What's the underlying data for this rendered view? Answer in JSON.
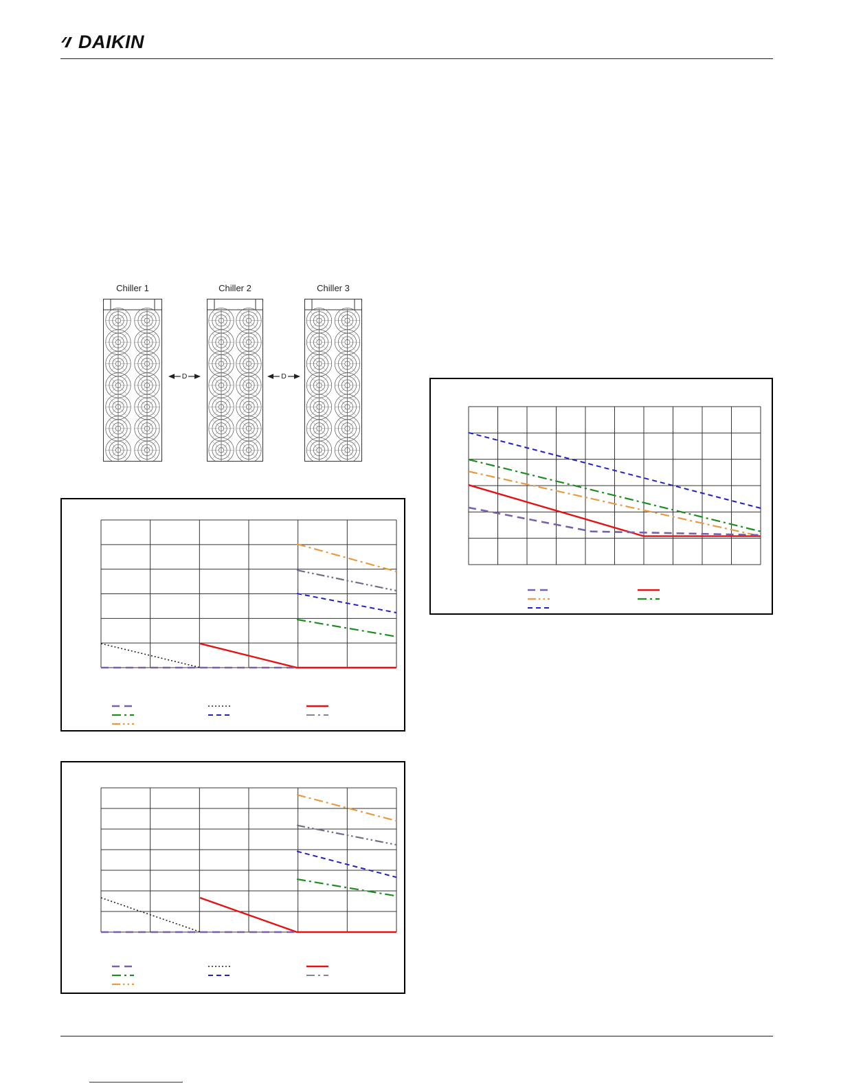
{
  "page": {
    "brand": "DAIKIN"
  },
  "diagram": {
    "spacing_label": "D",
    "units": [
      {
        "label": "Chiller 1",
        "fan_cols": 2,
        "fan_rows": 7
      },
      {
        "label": "Chiller 2",
        "fan_cols": 2,
        "fan_rows": 7
      },
      {
        "label": "Chiller 3",
        "fan_cols": 2,
        "fan_rows": 7
      }
    ]
  },
  "line_styles": {
    "purple-longdash": {
      "color": "#7a5fae",
      "dash": "11 7",
      "width": 2.6
    },
    "orange-dashdot": {
      "color": "#e99a40",
      "dash": "13 5 3 5",
      "width": 2.2
    },
    "orange-dashdotdot": {
      "color": "#e99a40",
      "dash": "12 4 2.5 4 2.5 4",
      "width": 2.2
    },
    "blue-dashed": {
      "color": "#1f1fd0",
      "dash": "7 5",
      "width": 2.0
    },
    "green-dashdot": {
      "color": "#1e8c1e",
      "dash": "13 5 3 5",
      "width": 2.2
    },
    "red-solid": {
      "color": "#e81010",
      "dash": "",
      "width": 2.4
    },
    "black-dotted": {
      "color": "#222222",
      "dash": "2 3",
      "width": 1.6
    },
    "gray-dashdotdot": {
      "color": "#6e6e88",
      "dash": "12 4 2.5 4 2.5 4",
      "width": 2.2
    },
    "gray-dashdot": {
      "color": "#8a7f9a",
      "dash": "12 5 3 5",
      "width": 2.0
    }
  },
  "chart_data": [
    {
      "type": "line",
      "title": "",
      "grid": {
        "cols": 10,
        "rows": 6
      },
      "series": [
        {
          "name": "blue-dashed",
          "style": "blue-dashed",
          "points": [
            [
              0,
              0.165
            ],
            [
              1,
              0.643
            ]
          ]
        },
        {
          "name": "green-dash-dot",
          "style": "green-dashdot",
          "points": [
            [
              0,
              0.335
            ],
            [
              1,
              0.79
            ]
          ]
        },
        {
          "name": "orange-dash-dot",
          "style": "orange-dashdot",
          "points": [
            [
              0,
              0.41
            ],
            [
              1,
              0.82
            ]
          ]
        },
        {
          "name": "red-solid",
          "style": "red-solid",
          "points": [
            [
              0,
              0.496
            ],
            [
              0.6,
              0.82
            ],
            [
              1,
              0.82
            ]
          ]
        },
        {
          "name": "purple-long-dash",
          "style": "purple-longdash",
          "points": [
            [
              0,
              0.639
            ],
            [
              0.42,
              0.79
            ],
            [
              1,
              0.813
            ]
          ]
        }
      ],
      "legend": {
        "columns": [
          [
            "purple-longdash",
            "orange-dashdotdot",
            "blue-dashed"
          ],
          [
            "red-solid",
            "green-dashdot"
          ]
        ]
      }
    },
    {
      "type": "line",
      "title": "",
      "grid": {
        "cols": 6,
        "rows": 6
      },
      "series": [
        {
          "name": "orange-dash-dot",
          "style": "orange-dashdot",
          "points": [
            [
              0.663,
              0.163
            ],
            [
              1,
              0.349
            ]
          ]
        },
        {
          "name": "gray-dash-dot-dot",
          "style": "gray-dashdotdot",
          "points": [
            [
              0.663,
              0.34
            ],
            [
              1,
              0.479
            ]
          ]
        },
        {
          "name": "blue-dashed",
          "style": "blue-dashed",
          "points": [
            [
              0.663,
              0.498
            ],
            [
              1,
              0.628
            ]
          ]
        },
        {
          "name": "green-dash-dot",
          "style": "green-dashdot",
          "points": [
            [
              0.663,
              0.674
            ],
            [
              1,
              0.79
            ]
          ]
        },
        {
          "name": "black-dotted",
          "style": "black-dotted",
          "points": [
            [
              0,
              0.837
            ],
            [
              0.337,
              1
            ]
          ]
        },
        {
          "name": "red-solid",
          "style": "red-solid",
          "points": [
            [
              0.335,
              0.837
            ],
            [
              0.663,
              1
            ],
            [
              1,
              1
            ]
          ]
        },
        {
          "name": "purple-long-dash",
          "style": "purple-longdash",
          "points": [
            [
              0,
              1
            ],
            [
              0.663,
              1
            ]
          ]
        }
      ],
      "legend": {
        "columns": [
          [
            "purple-longdash",
            "green-dashdot",
            "orange-dashdotdot"
          ],
          [
            "black-dotted",
            "blue-dashed"
          ],
          [
            "red-solid",
            "gray-dashdot"
          ]
        ]
      }
    },
    {
      "type": "line",
      "title": "",
      "grid": {
        "cols": 6,
        "rows": 7
      },
      "series": [
        {
          "name": "orange-dash-dot",
          "style": "orange-dashdot",
          "points": [
            [
              0.663,
              0.048
            ],
            [
              1,
              0.229
            ]
          ]
        },
        {
          "name": "gray-dash-dot-dot",
          "style": "gray-dashdotdot",
          "points": [
            [
              0.663,
              0.26
            ],
            [
              1,
              0.395
            ]
          ]
        },
        {
          "name": "blue-dashed",
          "style": "blue-dashed",
          "points": [
            [
              0.663,
              0.44
            ],
            [
              1,
              0.62
            ]
          ]
        },
        {
          "name": "green-dash-dot",
          "style": "green-dashdot",
          "points": [
            [
              0.663,
              0.633
            ],
            [
              1,
              0.75
            ]
          ]
        },
        {
          "name": "black-dotted",
          "style": "black-dotted",
          "points": [
            [
              0,
              0.762
            ],
            [
              0.337,
              1
            ]
          ]
        },
        {
          "name": "red-solid",
          "style": "red-solid",
          "points": [
            [
              0.335,
              0.762
            ],
            [
              0.663,
              1
            ],
            [
              1,
              1
            ]
          ]
        },
        {
          "name": "purple-long-dash",
          "style": "purple-longdash",
          "points": [
            [
              0,
              1
            ],
            [
              0.663,
              1
            ]
          ]
        }
      ],
      "legend": {
        "columns": [
          [
            "purple-longdash",
            "green-dashdot",
            "orange-dashdotdot"
          ],
          [
            "black-dotted",
            "blue-dashed"
          ],
          [
            "red-solid",
            "gray-dashdot"
          ]
        ]
      }
    }
  ],
  "footer": {
    "link_text": ""
  }
}
